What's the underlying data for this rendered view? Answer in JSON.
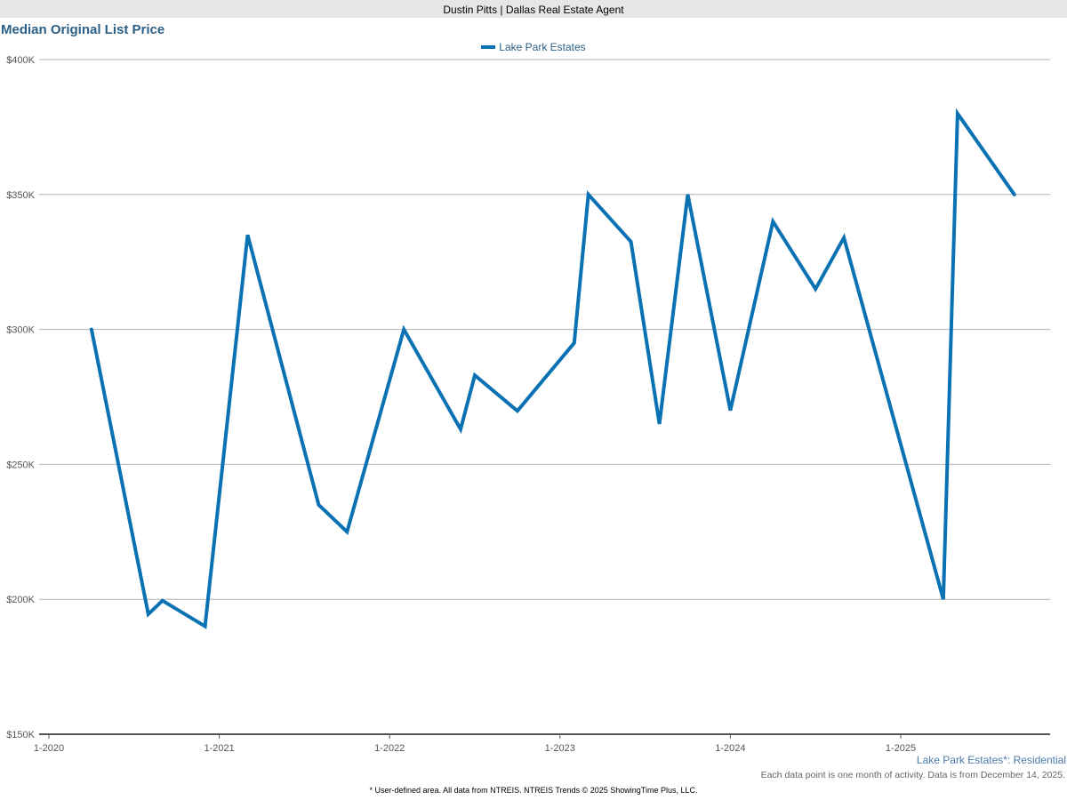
{
  "header": {
    "agent": "Dustin Pitts | Dallas Real Estate Agent"
  },
  "chart_data": {
    "type": "line",
    "title": "Median Original List Price",
    "xlabel": "",
    "ylabel": "",
    "ylim": [
      150000,
      400000
    ],
    "yticks": [
      {
        "value": 150000,
        "label": "$150K"
      },
      {
        "value": 200000,
        "label": "$200K"
      },
      {
        "value": 250000,
        "label": "$250K"
      },
      {
        "value": 300000,
        "label": "$300K"
      },
      {
        "value": 350000,
        "label": "$350K"
      },
      {
        "value": 400000,
        "label": "$400K"
      }
    ],
    "xticks": [
      "1-2020",
      "1-2021",
      "1-2022",
      "1-2023",
      "1-2024",
      "1-2025"
    ],
    "grid": true,
    "legend_position": "top-center",
    "series": [
      {
        "name": "Lake Park Estates",
        "color": "#0a72b3",
        "points": [
          {
            "x": "2020-04",
            "y": 300000
          },
          {
            "x": "2020-08",
            "y": 194500
          },
          {
            "x": "2020-09",
            "y": 199500
          },
          {
            "x": "2020-12",
            "y": 190000
          },
          {
            "x": "2021-03",
            "y": 335000
          },
          {
            "x": "2021-08",
            "y": 235000
          },
          {
            "x": "2021-10",
            "y": 225000
          },
          {
            "x": "2022-02",
            "y": 300000
          },
          {
            "x": "2022-06",
            "y": 263000
          },
          {
            "x": "2022-07",
            "y": 283000
          },
          {
            "x": "2022-10",
            "y": 269800
          },
          {
            "x": "2023-02",
            "y": 295000
          },
          {
            "x": "2023-03",
            "y": 350000
          },
          {
            "x": "2023-06",
            "y": 332500
          },
          {
            "x": "2023-08",
            "y": 265000
          },
          {
            "x": "2023-10",
            "y": 350000
          },
          {
            "x": "2024-01",
            "y": 270000
          },
          {
            "x": "2024-04",
            "y": 340000
          },
          {
            "x": "2024-07",
            "y": 315000
          },
          {
            "x": "2024-09",
            "y": 334000
          },
          {
            "x": "2025-04",
            "y": 200000
          },
          {
            "x": "2025-05",
            "y": 380000
          },
          {
            "x": "2025-09",
            "y": 350000
          }
        ]
      }
    ]
  },
  "subtitle": "Lake Park Estates*: Residential",
  "note": "Each data point is one month of activity. Data is from December 14, 2025.",
  "footer": "* User-defined area. All data from NTREIS. NTREIS Trends © 2025 ShowingTime Plus, LLC."
}
